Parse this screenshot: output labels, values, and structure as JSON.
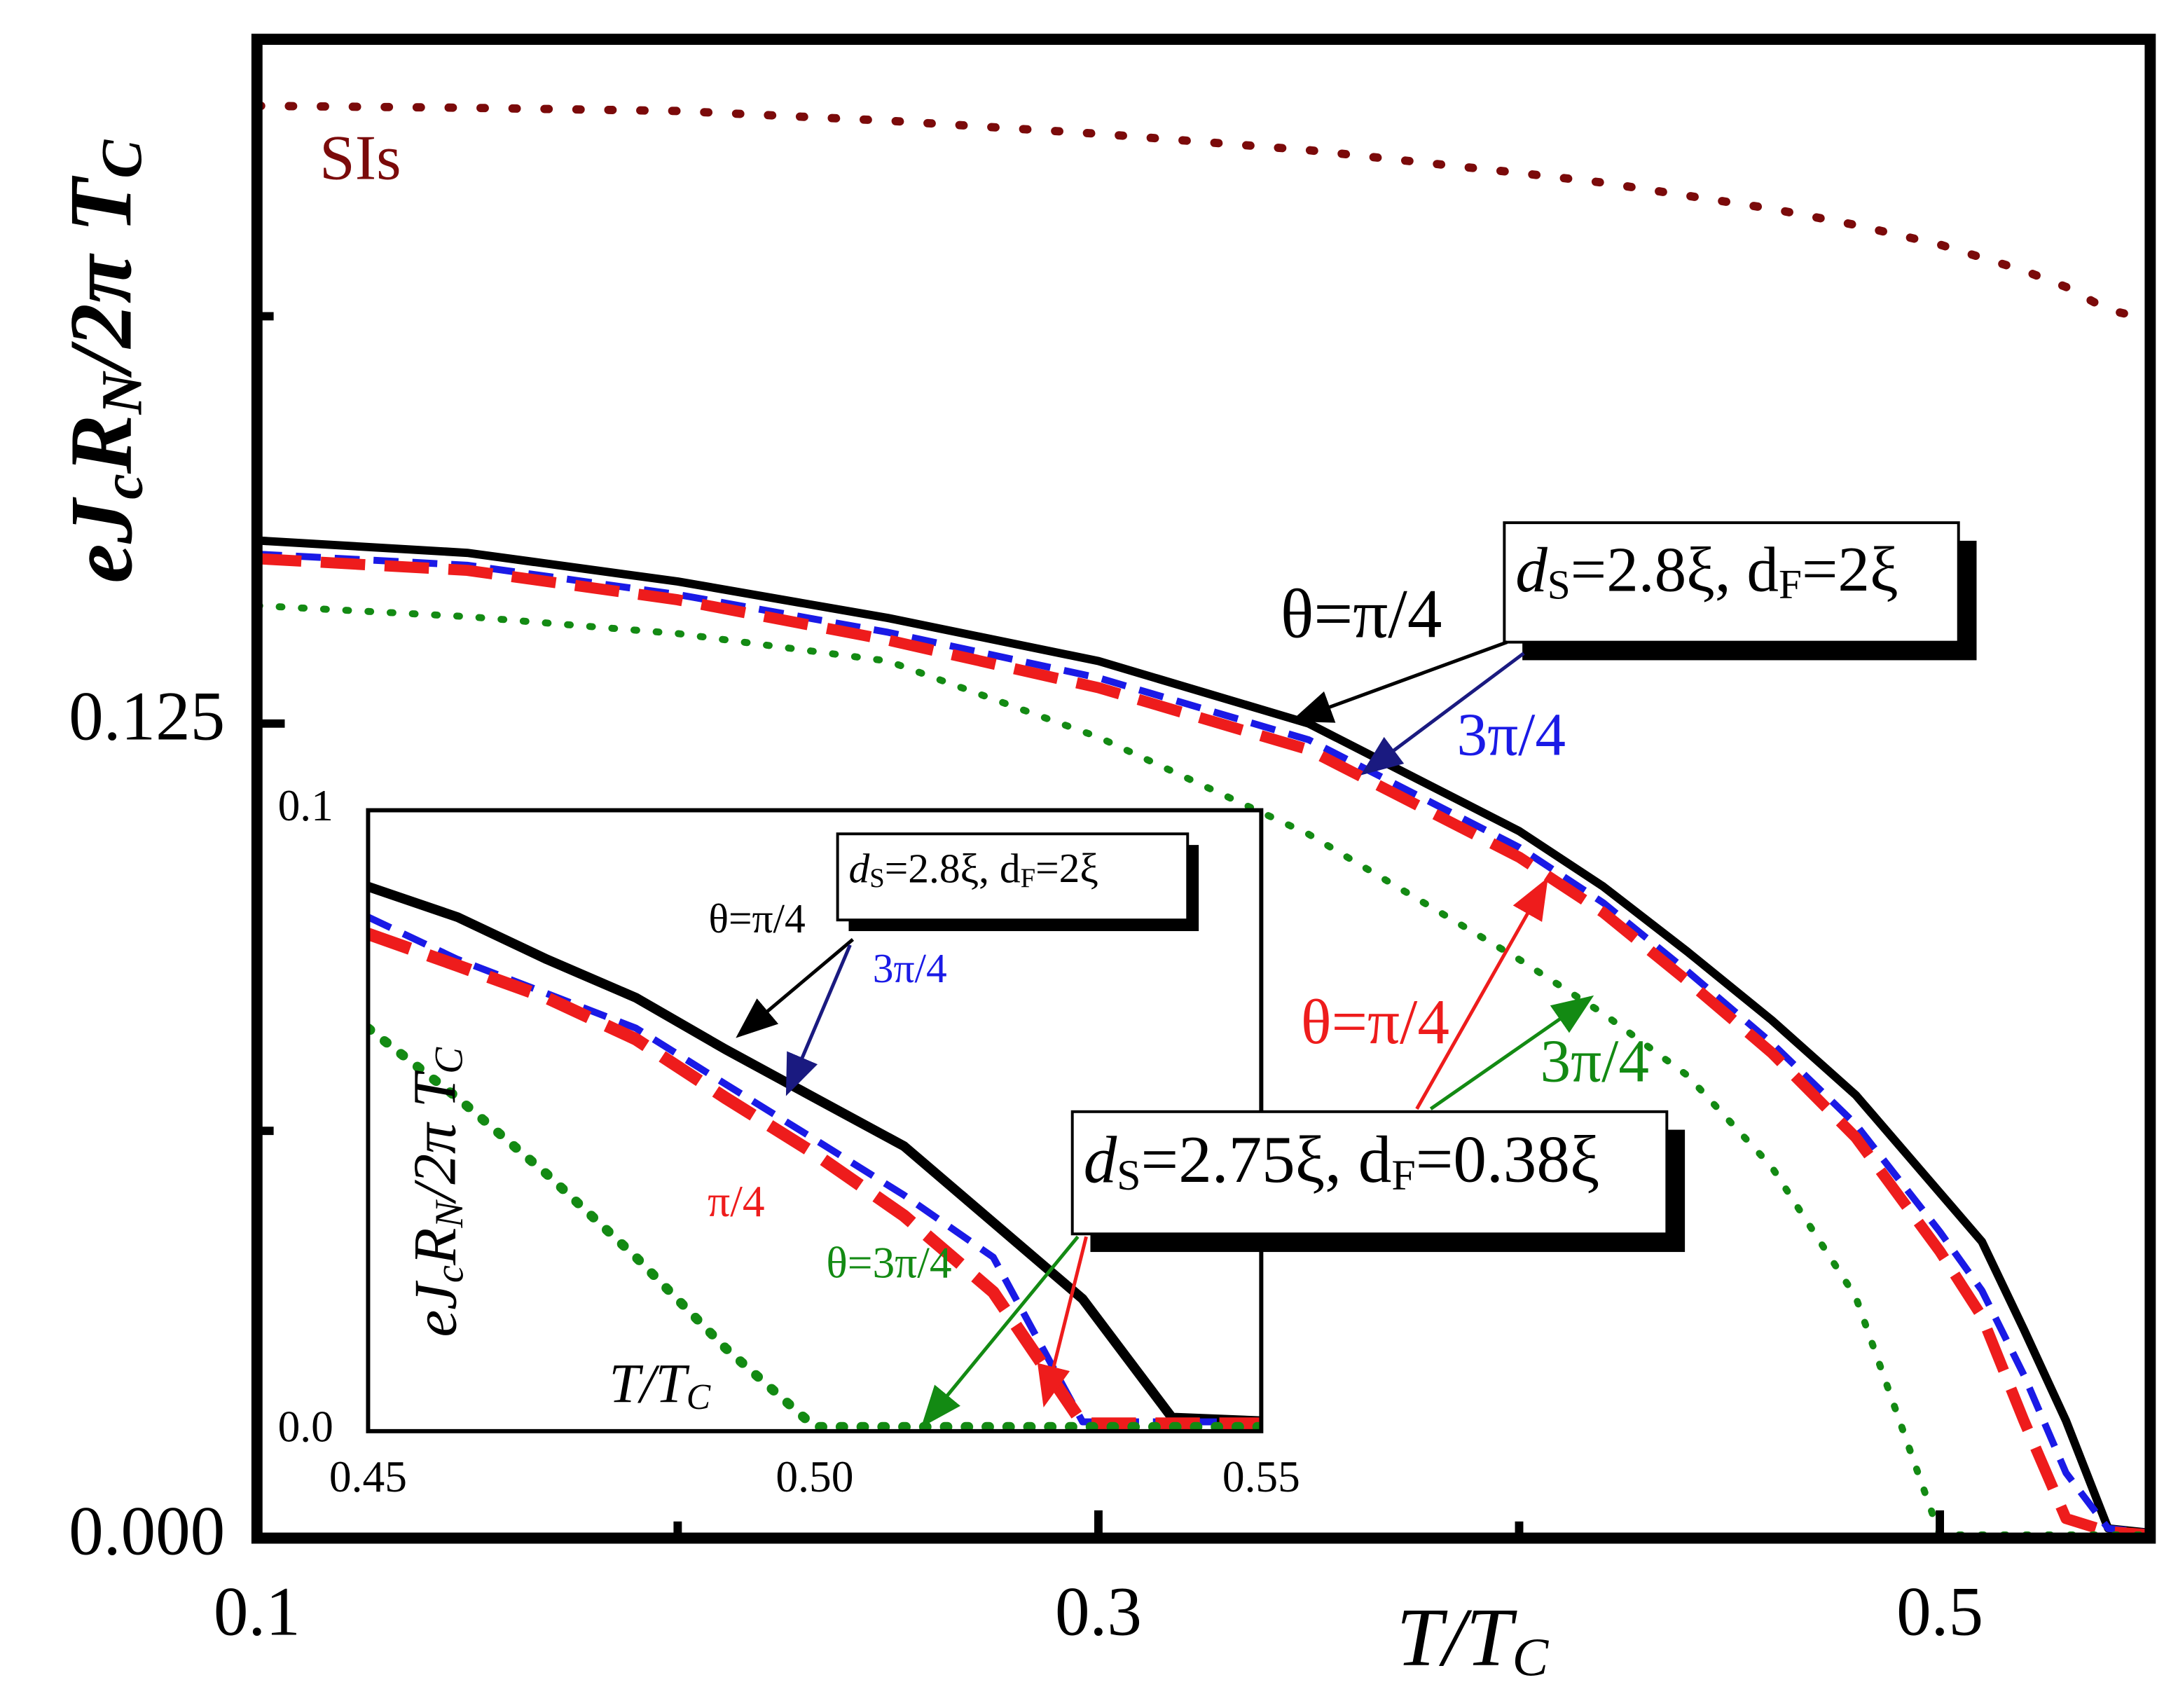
{
  "chart_data": [
    {
      "type": "line",
      "x_label": [
        "T/T",
        "C"
      ],
      "y_label": [
        "eJ",
        "c",
        "R",
        "N",
        "/2π T",
        "C"
      ],
      "xlim": [
        0.1,
        0.55
      ],
      "ylim": [
        0,
        0.23
      ],
      "xticks": [
        0.1,
        0.3,
        0.5
      ],
      "x_minor_ticks": [
        0.2,
        0.4
      ],
      "yticks": [
        {
          "value": 0,
          "label": "0.000"
        },
        0.125
      ],
      "y_minor_ticks": [
        0.0625,
        0.1875
      ],
      "x": [
        0.1,
        0.15,
        0.2,
        0.25,
        0.3,
        0.35,
        0.4,
        0.42,
        0.44,
        0.46,
        0.48,
        0.5,
        0.51,
        0.52,
        0.53,
        0.54,
        0.55
      ],
      "series": [
        {
          "name": "SIs",
          "color": "#7b0a0a",
          "style": "dotted",
          "values": [
            0.2198,
            0.2195,
            0.219,
            0.2175,
            0.2155,
            0.213,
            0.2095,
            0.208,
            0.206,
            0.204,
            0.2015,
            0.1985,
            0.1965,
            0.1945,
            0.192,
            0.1885,
            0.187
          ]
        },
        {
          "name": "θ=π/4",
          "color": "#000000",
          "style": "solid",
          "values": [
            0.1531,
            0.1512,
            0.1468,
            0.1412,
            0.1346,
            0.125,
            0.1085,
            0.1,
            0.09,
            0.0795,
            0.068,
            0.053,
            0.0455,
            0.032,
            0.018,
            0.0015,
            0.0008
          ]
        },
        {
          "name": "3π/4",
          "color": "#1a1ae6",
          "style": "dashed",
          "values": [
            0.151,
            0.1493,
            0.1448,
            0.139,
            0.132,
            0.1225,
            0.106,
            0.0975,
            0.087,
            0.076,
            0.0635,
            0.047,
            0.038,
            0.025,
            0.01,
            0.0015,
            0.0008
          ]
        },
        {
          "name": "θ=π/4",
          "color": "#ee1c1c",
          "style": "longdash",
          "values": [
            0.1503,
            0.1485,
            0.144,
            0.1378,
            0.1305,
            0.121,
            0.1045,
            0.096,
            0.0855,
            0.0745,
            0.0615,
            0.044,
            0.034,
            0.018,
            0.003,
            0.001,
            0.0005
          ]
        },
        {
          "name": "3π/4",
          "color": "#138a13",
          "style": "dotted",
          "values": [
            0.1431,
            0.1414,
            0.1388,
            0.1346,
            0.1229,
            0.108,
            0.0888,
            0.0805,
            0.071,
            0.057,
            0.037,
            0.0005,
            0.0005,
            0.0005,
            0.0005,
            0.0005,
            0.0005
          ]
        }
      ],
      "annotations": [
        [
          "d",
          "S",
          "=2.8ξ, d",
          "F",
          "=2ξ"
        ],
        [
          "d",
          "S",
          "=2.75ξ, d",
          "F",
          "=0.38ξ"
        ]
      ]
    },
    {
      "type": "line",
      "x_label": [
        "T/T",
        "C"
      ],
      "y_label": [
        "eJ",
        "c",
        "R",
        "N",
        "/2π T",
        "C"
      ],
      "xlim": [
        0.45,
        0.55
      ],
      "ylim": [
        0,
        0.1
      ],
      "xticks": [
        {
          "value": 0.45,
          "label": "0.45"
        },
        {
          "value": 0.5,
          "label": "0.50"
        },
        {
          "value": 0.55,
          "label": "0.55"
        }
      ],
      "yticks": [
        {
          "value": 0,
          "label": "0.0"
        },
        0.1
      ],
      "x": [
        0.45,
        0.46,
        0.47,
        0.48,
        0.49,
        0.5,
        0.51,
        0.52,
        0.53,
        0.54,
        0.55
      ],
      "series": [
        {
          "name": "θ=π/4",
          "color": "#000000",
          "style": "solid",
          "values": [
            0.0877,
            0.0828,
            0.076,
            0.0698,
            0.0615,
            0.0537,
            0.0459,
            0.0336,
            0.0213,
            0.0022,
            0.0016
          ]
        },
        {
          "name": "3π/4",
          "color": "#1a1ae6",
          "style": "dashed",
          "values": [
            0.0828,
            0.076,
            0.0705,
            0.0649,
            0.0559,
            0.047,
            0.038,
            0.028,
            0.0015,
            0.0015,
            0.0015
          ]
        },
        {
          "name": "π/4",
          "color": "#ee1c1c",
          "style": "longdash",
          "values": [
            0.0801,
            0.075,
            0.0698,
            0.0631,
            0.0537,
            0.0447,
            0.0347,
            0.0224,
            0.0012,
            0.0012,
            0.0012
          ]
        },
        {
          "name": "θ=3π/4",
          "color": "#138a13",
          "style": "dotted",
          "values": [
            0.0649,
            0.0537,
            0.0414,
            0.028,
            0.0134,
            0.0007,
            0.0007,
            0.0007,
            0.0007,
            0.0007,
            0.0007
          ]
        }
      ],
      "annotations": [
        [
          "d",
          "S",
          "=2.8ξ, d",
          "F",
          "=2ξ"
        ]
      ]
    }
  ]
}
